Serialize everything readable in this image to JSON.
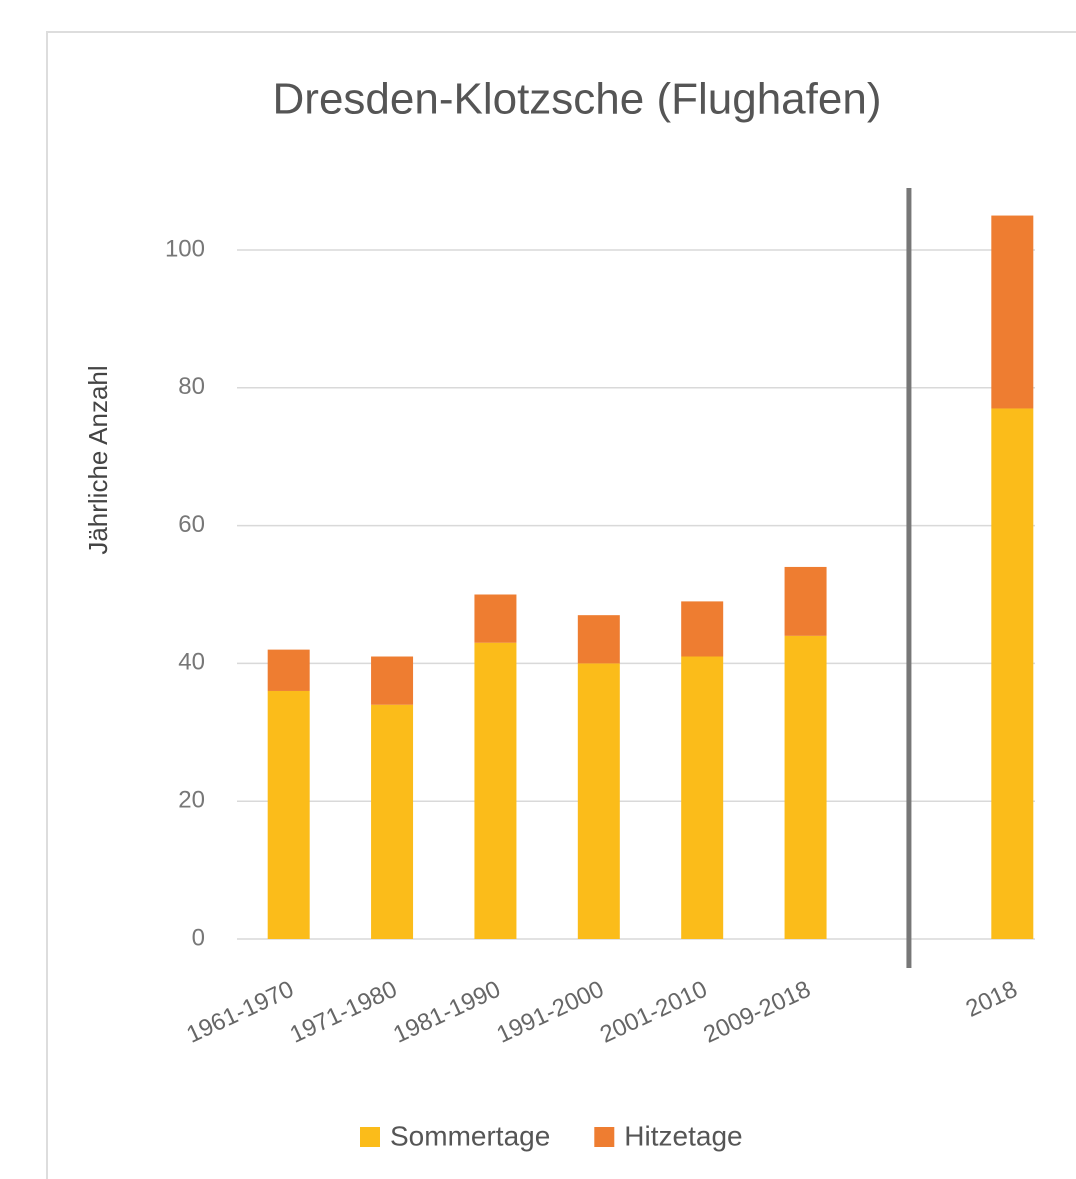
{
  "chart_data": {
    "type": "stacked_bar",
    "title": "Dresden-Klotzsche (Flughafen)",
    "y_label": "Jährliche Anzahl",
    "categories": [
      "1961-1970",
      "1971-1980",
      "1981-1990",
      "1991-2000",
      "2001-2010",
      "2009-2018",
      null,
      "2018"
    ],
    "series": [
      {
        "name": "Sommertage",
        "color": "#fbbc1a",
        "values": [
          36,
          34,
          43,
          40,
          41,
          44,
          null,
          77
        ]
      },
      {
        "name": "Hitzetage",
        "color": "#ee7d31",
        "values": [
          6,
          7,
          7,
          7,
          8,
          10,
          null,
          28
        ]
      }
    ],
    "ylim": [
      0,
      109
    ],
    "yticks": [
      0,
      20,
      40,
      60,
      80,
      100
    ],
    "grid": true,
    "legend": "bottom"
  }
}
